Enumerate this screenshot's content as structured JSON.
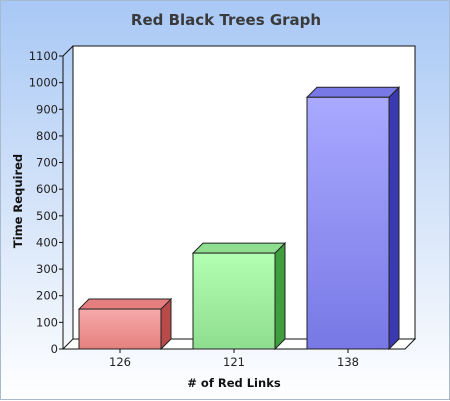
{
  "chart_data": {
    "type": "bar",
    "title": "Red Black Trees Graph",
    "xlabel": "# of Red Links",
    "ylabel": "Time Required",
    "categories": [
      "126",
      "121",
      "138"
    ],
    "values": [
      150,
      360,
      945
    ],
    "ylim": [
      0,
      1100
    ],
    "yticks": [
      0,
      100,
      200,
      300,
      400,
      500,
      600,
      700,
      800,
      900,
      1000,
      1100
    ],
    "grid": false,
    "legend": "none",
    "bar_colors": [
      {
        "light": "#f6aaaa",
        "mid": "#e57f7f",
        "dark": "#b84a4a"
      },
      {
        "light": "#b2ffb2",
        "mid": "#8fdd8f",
        "dark": "#3f9f3f"
      },
      {
        "light": "#a9a9ff",
        "mid": "#7878e6",
        "dark": "#3a3ab0"
      }
    ]
  }
}
